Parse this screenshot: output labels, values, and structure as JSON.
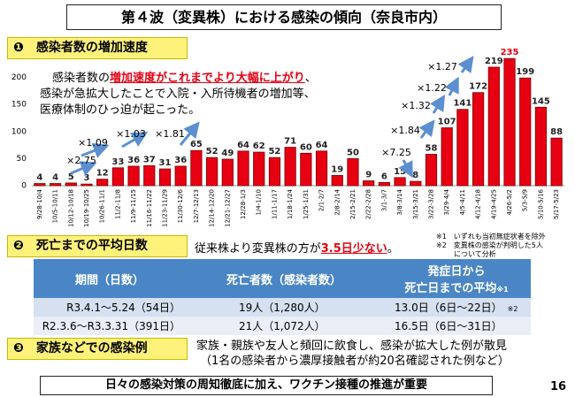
{
  "title": "第４波（変異株）における感染の傾向（奈良市内）",
  "section1": {
    "number": "❶",
    "heading": "感染者数の増加速度"
  },
  "chart_data": {
    "type": "bar",
    "categories": [
      "9/28-10/4",
      "10/5-10/11",
      "10/12-10/18",
      "10/19-10/25",
      "10/26-11/1",
      "11/2-11/8",
      "11/9-11/15",
      "11/16-11/22",
      "11/23-11/29",
      "11/30-12/6",
      "12/7-12/13",
      "12/14-12/20",
      "12/21-12/27",
      "12/28-1/3",
      "1/4-1/10",
      "1/11-1/17",
      "1/18-1/24",
      "1/25-1/31",
      "2/1-2/7",
      "2/8-2/14",
      "2/15-2/21",
      "2/22-2/28",
      "3/1-3/7",
      "3/8-3/14",
      "3/15-3/21",
      "3/22-3/28",
      "3/29-4/4",
      "4/5-4/11",
      "4/12-4/18",
      "4/19-4/25",
      "4/26-5/2",
      "5/3-5/9",
      "5/10-5/16",
      "5/17-5/23"
    ],
    "values": [
      4,
      4,
      5,
      3,
      12,
      33,
      36,
      37,
      31,
      36,
      65,
      52,
      49,
      64,
      62,
      52,
      71,
      60,
      64,
      19,
      50,
      9,
      6,
      15,
      8,
      58,
      107,
      141,
      172,
      219,
      235,
      199,
      145,
      88
    ],
    "color": "#e60012",
    "peak_label_color": "#e60012",
    "ylim": [
      0,
      250
    ],
    "yticks": [
      0,
      50,
      100,
      150,
      200
    ],
    "grid": false,
    "note_lines": [
      [
        "感染者数の",
        "増加速度がこれまでより大幅に上がり",
        "、"
      ],
      [
        "感染が急拡大したことで入院・入所待機者の増加等、"
      ],
      [
        "医療体制のひっ迫が起こった。"
      ]
    ],
    "annotations": [
      "×2.75",
      "×1.09",
      "×1.03",
      "×1.81",
      "×7.25",
      "×1.84",
      "×1.32",
      "×1.22",
      "×1.27"
    ]
  },
  "section2": {
    "number": "❷",
    "heading": "死亡までの平均日数",
    "text": [
      "従来株より変異株の方が",
      "3.5日少ない",
      "。"
    ],
    "notes": [
      "※1　いずれも当初無症状者を除外",
      "※2　変異株の感染が判明した5人",
      "について分析"
    ]
  },
  "table": {
    "header": [
      "期間（日数）",
      "死亡者数（感染者数）",
      [
        "発症日から",
        "死亡日までの平均",
        "※1"
      ]
    ],
    "rows": [
      [
        "R3.4.1～5.24（54日）",
        "19人（1,280人）",
        "13.0日（6日～22日）",
        "※2"
      ],
      [
        "R2.3.6～R3.3.31（391日）",
        "21人（1,072人）",
        "16.5日（6日～31日）"
      ]
    ]
  },
  "section3": {
    "number": "❸",
    "heading": "家族などでの感染例",
    "lines": [
      "家族・親族や友人と頻回に飲食し、感染が拡大した例が散見",
      "（1名の感染者から濃厚接触者が約20名確認された例など）"
    ]
  },
  "footer": {
    "message": "日々の感染対策の周知徹底に加え、ワクチン接種の推進が重要",
    "page": "16"
  }
}
